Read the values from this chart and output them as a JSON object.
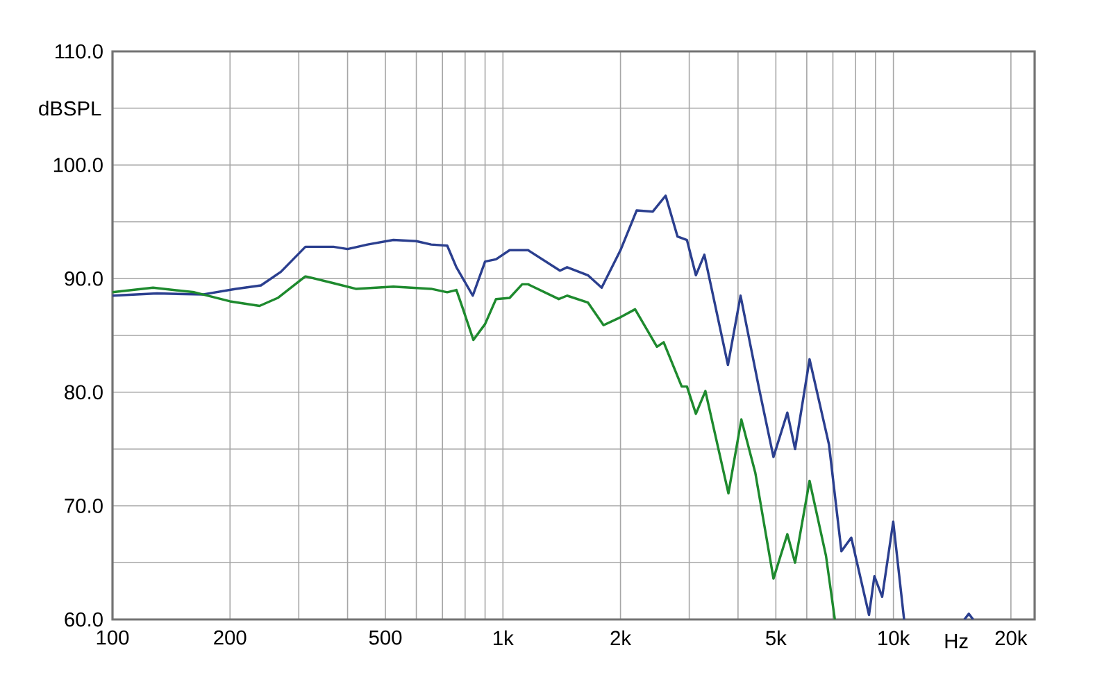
{
  "chart_data": {
    "type": "line",
    "xlabel": "Hz",
    "ylabel": "dBSPL",
    "log": "x",
    "grid": true,
    "line_style": "solid",
    "xlim": [
      100,
      23000
    ],
    "ylim": [
      60,
      110
    ],
    "xticks": [
      100,
      200,
      {
        "value": 300,
        "label": null
      },
      {
        "value": 400,
        "label": null
      },
      500,
      {
        "value": 600,
        "label": null
      },
      {
        "value": 700,
        "label": null
      },
      {
        "value": 800,
        "label": null
      },
      {
        "value": 900,
        "label": null
      },
      {
        "value": 1000,
        "label": "1k"
      },
      {
        "value": 2000,
        "label": "2k"
      },
      {
        "value": 3000,
        "label": null
      },
      {
        "value": 4000,
        "label": null
      },
      {
        "value": 5000,
        "label": "5k"
      },
      {
        "value": 6000,
        "label": null
      },
      {
        "value": 7000,
        "label": null
      },
      {
        "value": 8000,
        "label": null
      },
      {
        "value": 9000,
        "label": null
      },
      {
        "value": 10000,
        "label": "10k"
      },
      {
        "value": 20000,
        "label": "20k"
      }
    ],
    "yticks": [
      {
        "value": 60,
        "label": "60.0"
      },
      {
        "value": 65,
        "label": null
      },
      {
        "value": 70,
        "label": "70.0"
      },
      {
        "value": 75,
        "label": null
      },
      {
        "value": 80,
        "label": "80.0"
      },
      {
        "value": 85,
        "label": null
      },
      {
        "value": 90,
        "label": "90.0"
      },
      {
        "value": 95,
        "label": null
      },
      {
        "value": 100,
        "label": "100.0"
      },
      {
        "value": 105,
        "label": null
      },
      {
        "value": 110,
        "label": "110.0"
      }
    ],
    "series": [
      {
        "color": "#2b3f8f",
        "x": [
          100,
          130,
          170,
          207,
          240,
          270,
          312,
          368,
          400,
          450,
          524,
          600,
          655,
          720,
          760,
          837,
          900,
          960,
          1040,
          1100,
          1160,
          1400,
          1460,
          1650,
          1790,
          2000,
          2200,
          2420,
          2610,
          2800,
          2960,
          3120,
          3280,
          3770,
          4060,
          4530,
          4930,
          5350,
          5600,
          6100,
          6840,
          7360,
          7800,
          8660,
          8940,
          9360,
          9990,
          10650,
          13000,
          15200,
          15600,
          16000
        ],
        "values": [
          88.5,
          88.7,
          88.6,
          89.1,
          89.4,
          90.6,
          92.8,
          92.8,
          92.6,
          93.0,
          93.4,
          93.3,
          93.0,
          92.9,
          91.0,
          88.5,
          91.5,
          91.7,
          92.5,
          92.5,
          92.5,
          90.7,
          91.0,
          90.3,
          89.2,
          92.5,
          96.0,
          95.9,
          97.3,
          93.7,
          93.4,
          90.3,
          92.1,
          82.4,
          88.5,
          80.3,
          74.3,
          78.2,
          75.0,
          82.9,
          75.4,
          66.0,
          67.2,
          60.4,
          63.8,
          62.0,
          68.6,
          60.0,
          null,
          60.0,
          60.5,
          60.0
        ]
      },
      {
        "color": "#1e8a2e",
        "x": [
          100,
          127,
          162,
          200,
          238,
          265,
          312,
          368,
          420,
          524,
          655,
          720,
          760,
          787,
          840,
          900,
          960,
          1040,
          1120,
          1160,
          1390,
          1460,
          1650,
          1810,
          2000,
          2180,
          2480,
          2580,
          2870,
          2960,
          3120,
          3300,
          3780,
          4080,
          4430,
          4930,
          5350,
          5600,
          6100,
          6720,
          7080
        ],
        "values": [
          88.8,
          89.2,
          88.8,
          88.0,
          87.6,
          88.3,
          90.2,
          89.6,
          89.1,
          89.3,
          89.1,
          88.8,
          89.0,
          87.5,
          84.6,
          86.0,
          88.2,
          88.3,
          89.5,
          89.5,
          88.2,
          88.5,
          87.9,
          85.9,
          86.6,
          87.3,
          84.0,
          84.4,
          80.5,
          80.5,
          78.1,
          80.1,
          71.1,
          77.6,
          72.9,
          63.6,
          67.5,
          65.0,
          72.2,
          65.6,
          60.0
        ]
      }
    ]
  }
}
